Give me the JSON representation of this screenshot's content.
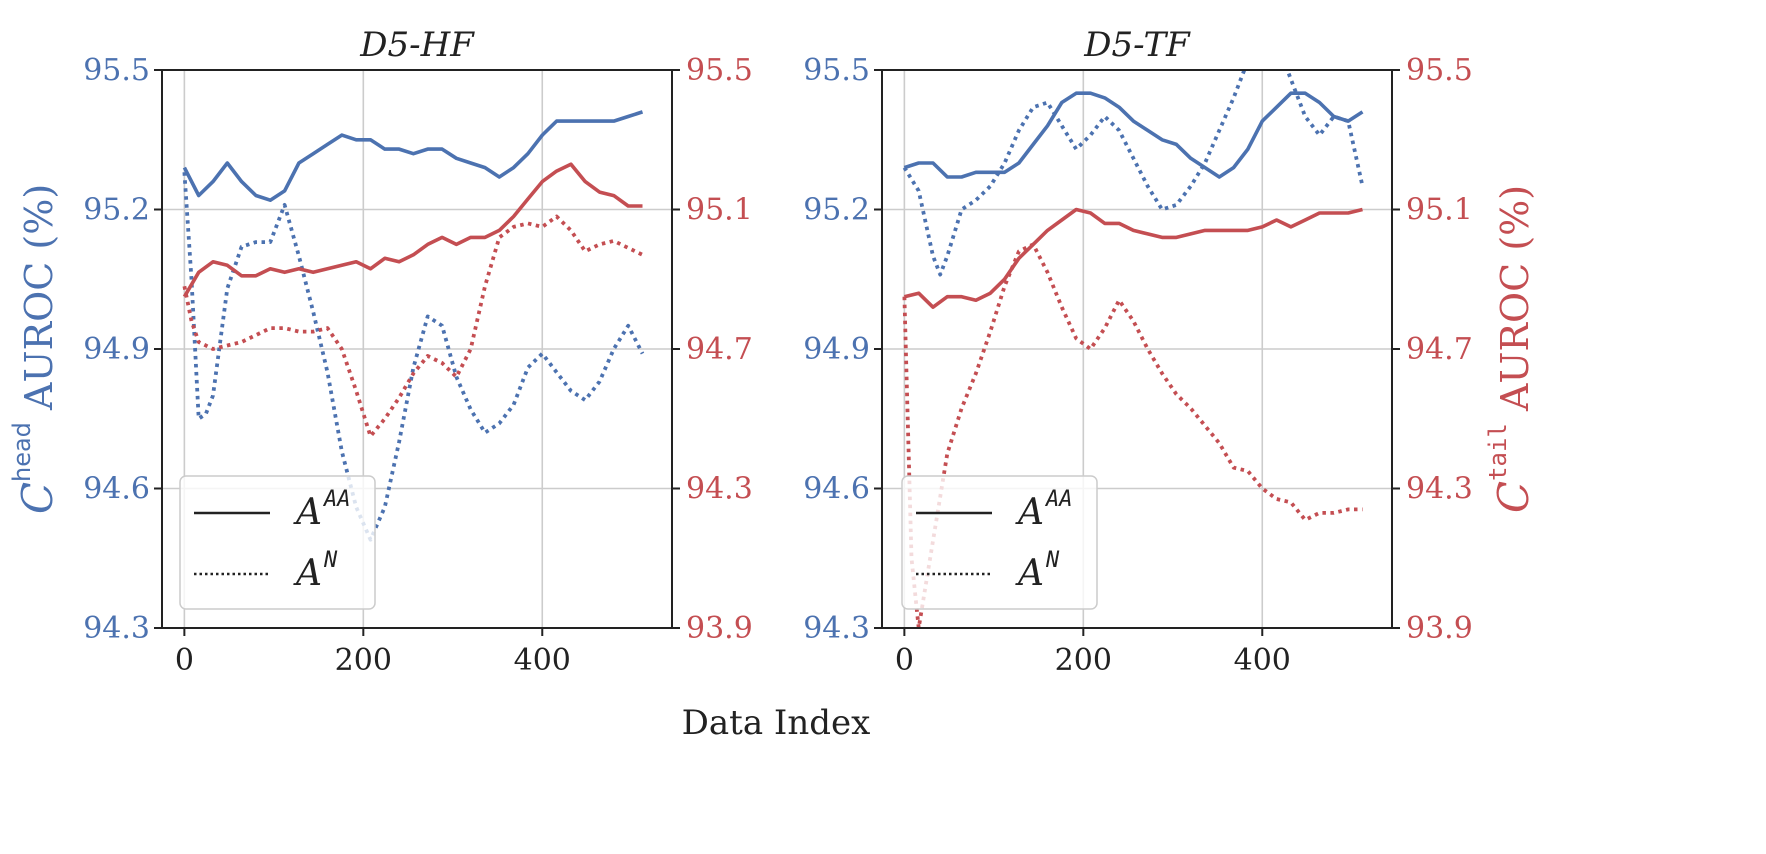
{
  "chart_data": [
    {
      "type": "line",
      "title": "D5-HF",
      "xlabel": "Data Index",
      "x_ticks": [
        "0",
        "200",
        "400"
      ],
      "xlim": [
        -25,
        545
      ],
      "left_axis": {
        "label_main": "C",
        "label_sup": "head",
        "label_rest": " AUROC (%)",
        "ylim": [
          94.3,
          95.5
        ],
        "ticks": [
          "94.3",
          "94.6",
          "94.9",
          "95.2",
          "95.5"
        ],
        "tick_values": [
          94.3,
          94.6,
          94.9,
          95.2,
          95.5
        ]
      },
      "right_axis": {
        "label_main": "C",
        "label_sup": "tail",
        "label_rest": " AUROC (%)",
        "ylim": [
          93.9,
          95.5
        ],
        "ticks": [
          "93.9",
          "94.3",
          "94.7",
          "95.1",
          "95.5"
        ],
        "tick_values": [
          93.9,
          94.3,
          94.7,
          95.1,
          95.5
        ]
      },
      "grid": true,
      "legend": {
        "placement": "lower-left",
        "entries": [
          {
            "label": "A",
            "sup": "AA",
            "style": "solid"
          },
          {
            "label": "A",
            "sup": "N",
            "style": "dotted"
          }
        ]
      },
      "colors": {
        "head": "#4c72b0",
        "tail": "#c44e52"
      },
      "series": [
        {
          "metric": "head",
          "axis": "left",
          "style": "solid",
          "x": [
            0,
            16,
            32,
            48,
            64,
            80,
            96,
            112,
            128,
            144,
            160,
            176,
            192,
            208,
            224,
            240,
            256,
            272,
            288,
            304,
            320,
            336,
            352,
            368,
            384,
            400,
            416,
            432,
            448,
            464,
            480,
            496,
            512
          ],
          "y": [
            95.29,
            95.23,
            95.26,
            95.3,
            95.26,
            95.23,
            95.22,
            95.24,
            95.3,
            95.32,
            95.34,
            95.36,
            95.35,
            95.35,
            95.33,
            95.33,
            95.32,
            95.33,
            95.33,
            95.31,
            95.3,
            95.29,
            95.27,
            95.29,
            95.32,
            95.36,
            95.39,
            95.39,
            95.39,
            95.39,
            95.39,
            95.4,
            95.41
          ]
        },
        {
          "metric": "head",
          "axis": "left",
          "style": "dotted",
          "x": [
            0,
            8,
            16,
            24,
            32,
            48,
            64,
            80,
            96,
            112,
            128,
            144,
            160,
            176,
            192,
            208,
            224,
            240,
            256,
            272,
            288,
            304,
            320,
            336,
            352,
            368,
            384,
            400,
            416,
            432,
            448,
            464,
            480,
            496,
            512
          ],
          "y": [
            95.28,
            95.05,
            94.75,
            94.76,
            94.8,
            95.03,
            95.12,
            95.13,
            95.13,
            95.21,
            95.1,
            94.98,
            94.85,
            94.68,
            94.56,
            94.49,
            94.56,
            94.7,
            94.86,
            94.97,
            94.95,
            94.84,
            94.77,
            94.72,
            94.74,
            94.78,
            94.86,
            94.89,
            94.85,
            94.81,
            94.79,
            94.83,
            94.9,
            94.95,
            94.89
          ]
        },
        {
          "metric": "tail",
          "axis": "right",
          "style": "solid",
          "x": [
            0,
            16,
            32,
            48,
            64,
            80,
            96,
            112,
            128,
            144,
            160,
            176,
            192,
            208,
            224,
            240,
            256,
            272,
            288,
            304,
            320,
            336,
            352,
            368,
            384,
            400,
            416,
            432,
            448,
            464,
            480,
            496,
            512
          ],
          "y": [
            94.85,
            94.92,
            94.95,
            94.94,
            94.91,
            94.91,
            94.93,
            94.92,
            94.93,
            94.92,
            94.93,
            94.94,
            94.95,
            94.93,
            94.96,
            94.95,
            94.97,
            95.0,
            95.02,
            95.0,
            95.02,
            95.02,
            95.04,
            95.08,
            95.13,
            95.18,
            95.21,
            95.23,
            95.18,
            95.15,
            95.14,
            95.11,
            95.11
          ]
        },
        {
          "metric": "tail",
          "axis": "right",
          "style": "dotted",
          "x": [
            0,
            8,
            16,
            32,
            48,
            64,
            80,
            96,
            112,
            128,
            144,
            160,
            176,
            192,
            208,
            224,
            240,
            256,
            272,
            288,
            304,
            320,
            336,
            352,
            368,
            384,
            400,
            416,
            432,
            448,
            464,
            480,
            496,
            512
          ],
          "y": [
            94.88,
            94.78,
            94.72,
            94.7,
            94.71,
            94.72,
            94.74,
            94.76,
            94.76,
            94.75,
            94.75,
            94.76,
            94.7,
            94.58,
            94.45,
            94.5,
            94.56,
            94.63,
            94.68,
            94.66,
            94.62,
            94.7,
            94.88,
            95.02,
            95.05,
            95.06,
            95.05,
            95.08,
            95.04,
            94.98,
            95.0,
            95.01,
            94.99,
            94.97
          ]
        }
      ]
    },
    {
      "type": "line",
      "title": "D5-TF",
      "xlabel": "Data Index",
      "x_ticks": [
        "0",
        "200",
        "400"
      ],
      "xlim": [
        -25,
        545
      ],
      "left_axis": {
        "ylim": [
          94.3,
          95.5
        ],
        "ticks": [
          "94.3",
          "94.6",
          "94.9",
          "95.2",
          "95.5"
        ],
        "tick_values": [
          94.3,
          94.6,
          94.9,
          95.2,
          95.5
        ]
      },
      "right_axis": {
        "ylim": [
          93.9,
          95.5
        ],
        "ticks": [
          "93.9",
          "94.3",
          "94.7",
          "95.1",
          "95.5"
        ],
        "tick_values": [
          93.9,
          94.3,
          94.7,
          95.1,
          95.5
        ]
      },
      "grid": true,
      "legend": {
        "placement": "lower-left",
        "entries": [
          {
            "label": "A",
            "sup": "AA",
            "style": "solid"
          },
          {
            "label": "A",
            "sup": "N",
            "style": "dotted"
          }
        ]
      },
      "colors": {
        "head": "#4c72b0",
        "tail": "#c44e52"
      },
      "series": [
        {
          "metric": "head",
          "axis": "left",
          "style": "solid",
          "x": [
            0,
            16,
            32,
            48,
            64,
            80,
            96,
            112,
            128,
            144,
            160,
            176,
            192,
            208,
            224,
            240,
            256,
            272,
            288,
            304,
            320,
            336,
            352,
            368,
            384,
            400,
            416,
            432,
            448,
            464,
            480,
            496,
            512
          ],
          "y": [
            95.29,
            95.3,
            95.3,
            95.27,
            95.27,
            95.28,
            95.28,
            95.28,
            95.3,
            95.34,
            95.38,
            95.43,
            95.45,
            95.45,
            95.44,
            95.42,
            95.39,
            95.37,
            95.35,
            95.34,
            95.31,
            95.29,
            95.27,
            95.29,
            95.33,
            95.39,
            95.42,
            95.45,
            95.45,
            95.43,
            95.4,
            95.39,
            95.41
          ]
        },
        {
          "metric": "head",
          "axis": "left",
          "style": "dotted",
          "x": [
            0,
            16,
            32,
            40,
            48,
            64,
            80,
            96,
            112,
            128,
            144,
            160,
            176,
            192,
            208,
            224,
            240,
            256,
            272,
            288,
            304,
            320,
            336,
            352,
            368,
            384,
            400,
            416,
            432,
            448,
            464,
            480,
            496,
            512
          ],
          "y": [
            95.29,
            95.24,
            95.1,
            95.06,
            95.1,
            95.2,
            95.22,
            95.25,
            95.3,
            95.37,
            95.42,
            95.43,
            95.38,
            95.33,
            95.36,
            95.4,
            95.37,
            95.31,
            95.25,
            95.2,
            95.21,
            95.25,
            95.3,
            95.37,
            95.44,
            95.52,
            95.58,
            95.56,
            95.48,
            95.4,
            95.36,
            95.4,
            95.39,
            95.25
          ]
        },
        {
          "metric": "tail",
          "axis": "right",
          "style": "solid",
          "x": [
            0,
            16,
            32,
            48,
            64,
            80,
            96,
            112,
            128,
            144,
            160,
            176,
            192,
            208,
            224,
            240,
            256,
            272,
            288,
            304,
            320,
            336,
            352,
            368,
            384,
            400,
            416,
            432,
            448,
            464,
            480,
            496,
            512
          ],
          "y": [
            94.85,
            94.86,
            94.82,
            94.85,
            94.85,
            94.84,
            94.86,
            94.9,
            94.96,
            95.0,
            95.04,
            95.07,
            95.1,
            95.09,
            95.06,
            95.06,
            95.04,
            95.03,
            95.02,
            95.02,
            95.03,
            95.04,
            95.04,
            95.04,
            95.04,
            95.05,
            95.07,
            95.05,
            95.07,
            95.09,
            95.09,
            95.09,
            95.1
          ]
        },
        {
          "metric": "tail",
          "axis": "right",
          "style": "dotted",
          "x": [
            0,
            8,
            16,
            32,
            48,
            64,
            80,
            96,
            112,
            128,
            144,
            160,
            176,
            192,
            208,
            224,
            240,
            256,
            272,
            288,
            304,
            320,
            336,
            352,
            368,
            384,
            400,
            416,
            432,
            448,
            464,
            480,
            496,
            512
          ],
          "y": [
            94.85,
            94.1,
            93.9,
            94.15,
            94.4,
            94.53,
            94.63,
            94.75,
            94.88,
            94.98,
            95.0,
            94.92,
            94.82,
            94.73,
            94.7,
            94.76,
            94.84,
            94.78,
            94.7,
            94.63,
            94.57,
            94.53,
            94.48,
            94.43,
            94.36,
            94.35,
            94.3,
            94.27,
            94.26,
            94.21,
            94.23,
            94.23,
            94.24,
            94.24
          ]
        }
      ]
    }
  ]
}
